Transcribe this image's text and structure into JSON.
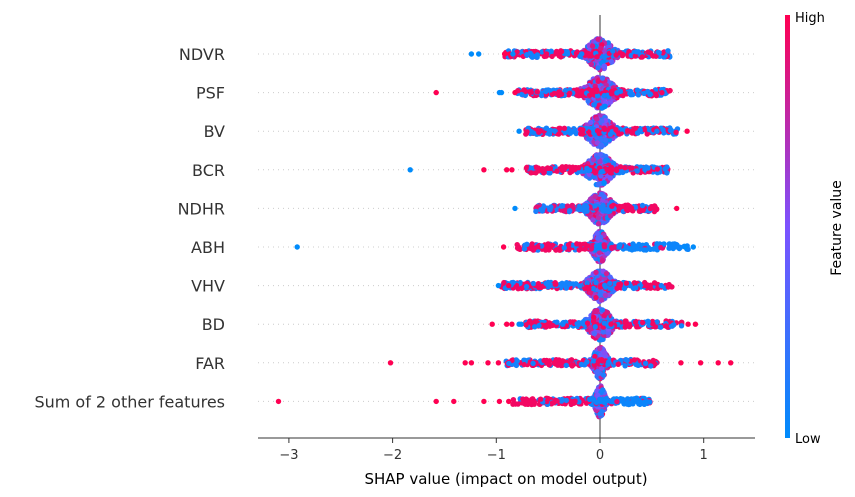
{
  "chart_data": {
    "type": "scatter",
    "subtype": "shap-beeswarm",
    "title": "",
    "xlabel": "SHAP value (impact on model output)",
    "ylabel": "",
    "xlim": [
      -3.3,
      1.5
    ],
    "xticks": [
      -3,
      -2,
      -1,
      0,
      1
    ],
    "xtick_labels": [
      "−3",
      "−2",
      "−1",
      "0",
      "1"
    ],
    "grid": false,
    "colorbar": {
      "title": "Feature value",
      "high_label": "High",
      "low_label": "Low",
      "high_color": "#ff0052",
      "mid_color": "#7c52ff",
      "low_color": "#008bfb"
    },
    "features": [
      {
        "name": "NDVR",
        "core_spread": 0.22,
        "range": [
          -0.92,
          0.68
        ],
        "high_side": "mixed",
        "outliers": [
          {
            "x": -1.24,
            "v": 0
          },
          {
            "x": -1.17,
            "v": 0
          },
          {
            "x": -0.92,
            "v": 1
          },
          {
            "x": -0.87,
            "v": 1
          },
          {
            "x": -0.84,
            "v": 0
          }
        ]
      },
      {
        "name": "PSF",
        "core_spread": 0.25,
        "range": [
          -0.8,
          0.68
        ],
        "high_side": "mixed",
        "outliers": [
          {
            "x": -1.58,
            "v": 1
          },
          {
            "x": -0.97,
            "v": 0
          },
          {
            "x": -0.95,
            "v": 0
          },
          {
            "x": -0.82,
            "v": 1
          }
        ]
      },
      {
        "name": "BV",
        "core_spread": 0.22,
        "range": [
          -0.72,
          0.75
        ],
        "high_side": "mixed",
        "outliers": [
          {
            "x": -0.78,
            "v": 0
          },
          {
            "x": 0.84,
            "v": 1
          }
        ]
      },
      {
        "name": "BCR",
        "core_spread": 0.22,
        "range": [
          -0.72,
          0.66
        ],
        "high_side": "mixed",
        "outliers": [
          {
            "x": -1.83,
            "v": 0
          },
          {
            "x": -1.12,
            "v": 1
          },
          {
            "x": -0.9,
            "v": 1
          },
          {
            "x": -0.85,
            "v": 1
          }
        ]
      },
      {
        "name": "NDHR",
        "core_spread": 0.2,
        "range": [
          -0.62,
          0.55
        ],
        "high_side": "positive",
        "outliers": [
          {
            "x": -0.82,
            "v": 0
          },
          {
            "x": 0.74,
            "v": 1
          }
        ]
      },
      {
        "name": "ABH",
        "core_spread": 0.12,
        "range": [
          -0.8,
          0.85
        ],
        "high_side": "negative",
        "outliers": [
          {
            "x": -2.92,
            "v": 0
          },
          {
            "x": -0.93,
            "v": 1
          },
          {
            "x": 0.82,
            "v": 0
          },
          {
            "x": 0.9,
            "v": 0
          }
        ]
      },
      {
        "name": "VHV",
        "core_spread": 0.2,
        "range": [
          -0.95,
          0.7
        ],
        "high_side": "mixed",
        "outliers": [
          {
            "x": -0.98,
            "v": 0
          },
          {
            "x": -0.88,
            "v": 1
          }
        ]
      },
      {
        "name": "BD",
        "core_spread": 0.2,
        "range": [
          -0.72,
          0.8
        ],
        "high_side": "mixed",
        "outliers": [
          {
            "x": -1.04,
            "v": 1
          },
          {
            "x": -0.9,
            "v": 1
          },
          {
            "x": -0.85,
            "v": 1
          },
          {
            "x": -0.78,
            "v": 0
          },
          {
            "x": -0.76,
            "v": 0
          },
          {
            "x": 0.85,
            "v": 1
          },
          {
            "x": 0.92,
            "v": 1
          }
        ]
      },
      {
        "name": "FAR",
        "core_spread": 0.12,
        "range": [
          -0.92,
          0.55
        ],
        "high_side": "mixed",
        "outliers": [
          {
            "x": -2.02,
            "v": 1
          },
          {
            "x": -1.3,
            "v": 1
          },
          {
            "x": -1.24,
            "v": 1
          },
          {
            "x": -1.08,
            "v": 1
          },
          {
            "x": -0.98,
            "v": 1
          },
          {
            "x": 0.78,
            "v": 1
          },
          {
            "x": 0.97,
            "v": 1
          },
          {
            "x": 1.14,
            "v": 1
          },
          {
            "x": 1.26,
            "v": 1
          }
        ]
      },
      {
        "name": "Sum of 2 other features",
        "core_spread": 0.08,
        "range": [
          -0.85,
          0.5
        ],
        "high_side": "negative",
        "outliers": [
          {
            "x": -3.1,
            "v": 1
          },
          {
            "x": -1.58,
            "v": 1
          },
          {
            "x": -1.41,
            "v": 1
          },
          {
            "x": -1.12,
            "v": 1
          },
          {
            "x": -0.97,
            "v": 1
          },
          {
            "x": -0.88,
            "v": 1
          }
        ]
      }
    ]
  }
}
